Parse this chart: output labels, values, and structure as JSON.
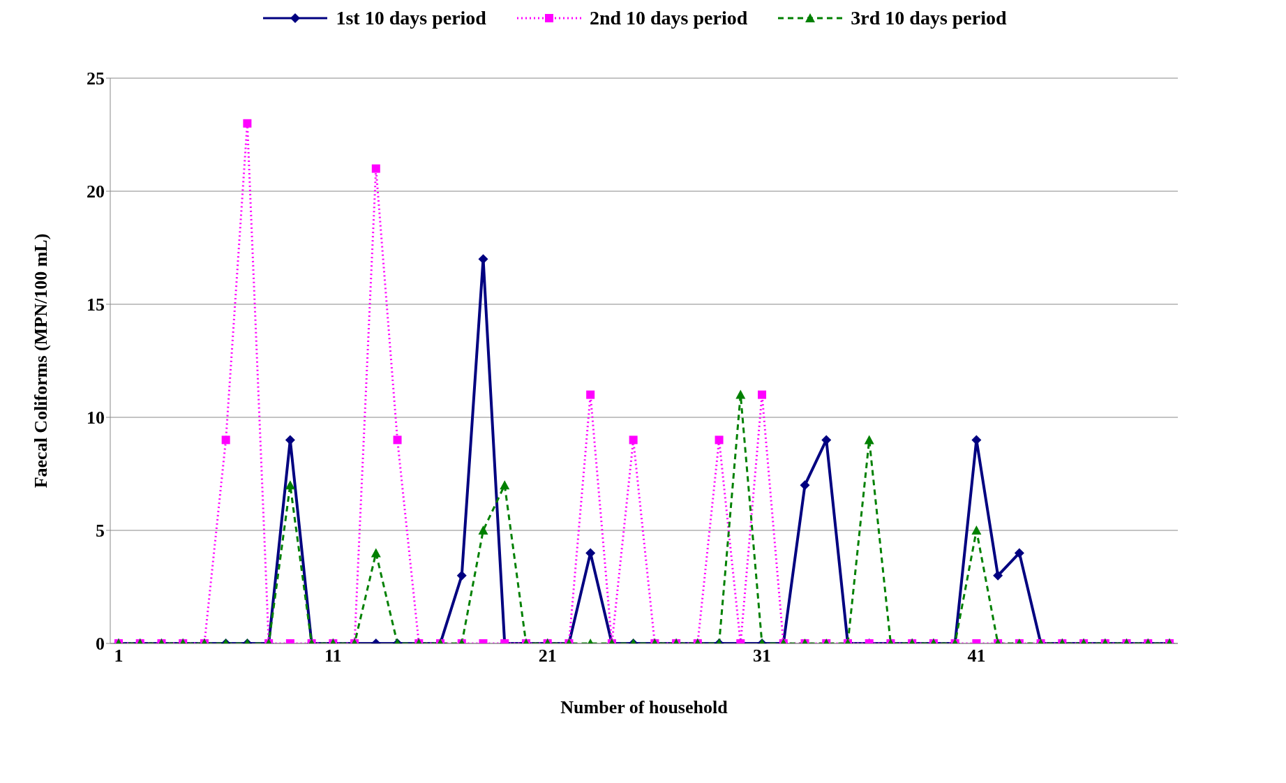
{
  "chart_data": {
    "type": "line",
    "xlabel": "Number of household",
    "ylabel": "Faecal Coliforms (MPN/100 mL)",
    "categories": [
      "1",
      null,
      null,
      null,
      null,
      null,
      null,
      null,
      null,
      null,
      "11",
      null,
      null,
      null,
      null,
      null,
      null,
      null,
      null,
      null,
      "21",
      null,
      null,
      null,
      null,
      null,
      null,
      null,
      null,
      null,
      "31",
      null,
      null,
      null,
      null,
      null,
      null,
      null,
      null,
      null,
      "41",
      null,
      null,
      null,
      null,
      null,
      null,
      null,
      null,
      null
    ],
    "series": [
      {
        "name": "1st 10 days period",
        "color": "#000080",
        "marker": "diamond",
        "line_style": "solid",
        "values": [
          0,
          0,
          0,
          0,
          0,
          0,
          0,
          0,
          9,
          0,
          0,
          0,
          0,
          0,
          0,
          0,
          3,
          17,
          0,
          0,
          0,
          0,
          4,
          0,
          0,
          0,
          0,
          0,
          0,
          0,
          0,
          0,
          7,
          9,
          0,
          0,
          0,
          0,
          0,
          0,
          9,
          3,
          4,
          0,
          0,
          0,
          0,
          0,
          0,
          0
        ]
      },
      {
        "name": "2nd 10 days period",
        "color": "#ff00ff",
        "marker": "square",
        "line_style": "dotted",
        "values": [
          0,
          0,
          0,
          0,
          0,
          9,
          23,
          0,
          0,
          0,
          0,
          0,
          21,
          9,
          0,
          0,
          0,
          0,
          0,
          0,
          0,
          0,
          11,
          0,
          9,
          0,
          0,
          0,
          9,
          0,
          11,
          0,
          0,
          0,
          0,
          0,
          0,
          0,
          0,
          0,
          0,
          0,
          0,
          0,
          0,
          0,
          0,
          0,
          0,
          0
        ]
      },
      {
        "name": "3rd 10 days period",
        "color": "#008000",
        "marker": "triangle",
        "line_style": "dashed",
        "values": [
          0,
          0,
          0,
          0,
          0,
          0,
          0,
          0,
          7,
          0,
          0,
          0,
          4,
          0,
          0,
          0,
          0,
          5,
          7,
          0,
          0,
          0,
          0,
          0,
          0,
          0,
          0,
          0,
          0,
          11,
          0,
          0,
          0,
          0,
          0,
          9,
          0,
          0,
          0,
          0,
          5,
          0,
          0,
          0,
          0,
          0,
          0,
          0,
          0,
          0
        ]
      }
    ],
    "ylim": [
      0,
      25
    ],
    "yticks": [
      0,
      5,
      10,
      15,
      20,
      25
    ],
    "grid": "y",
    "legend": "top"
  }
}
